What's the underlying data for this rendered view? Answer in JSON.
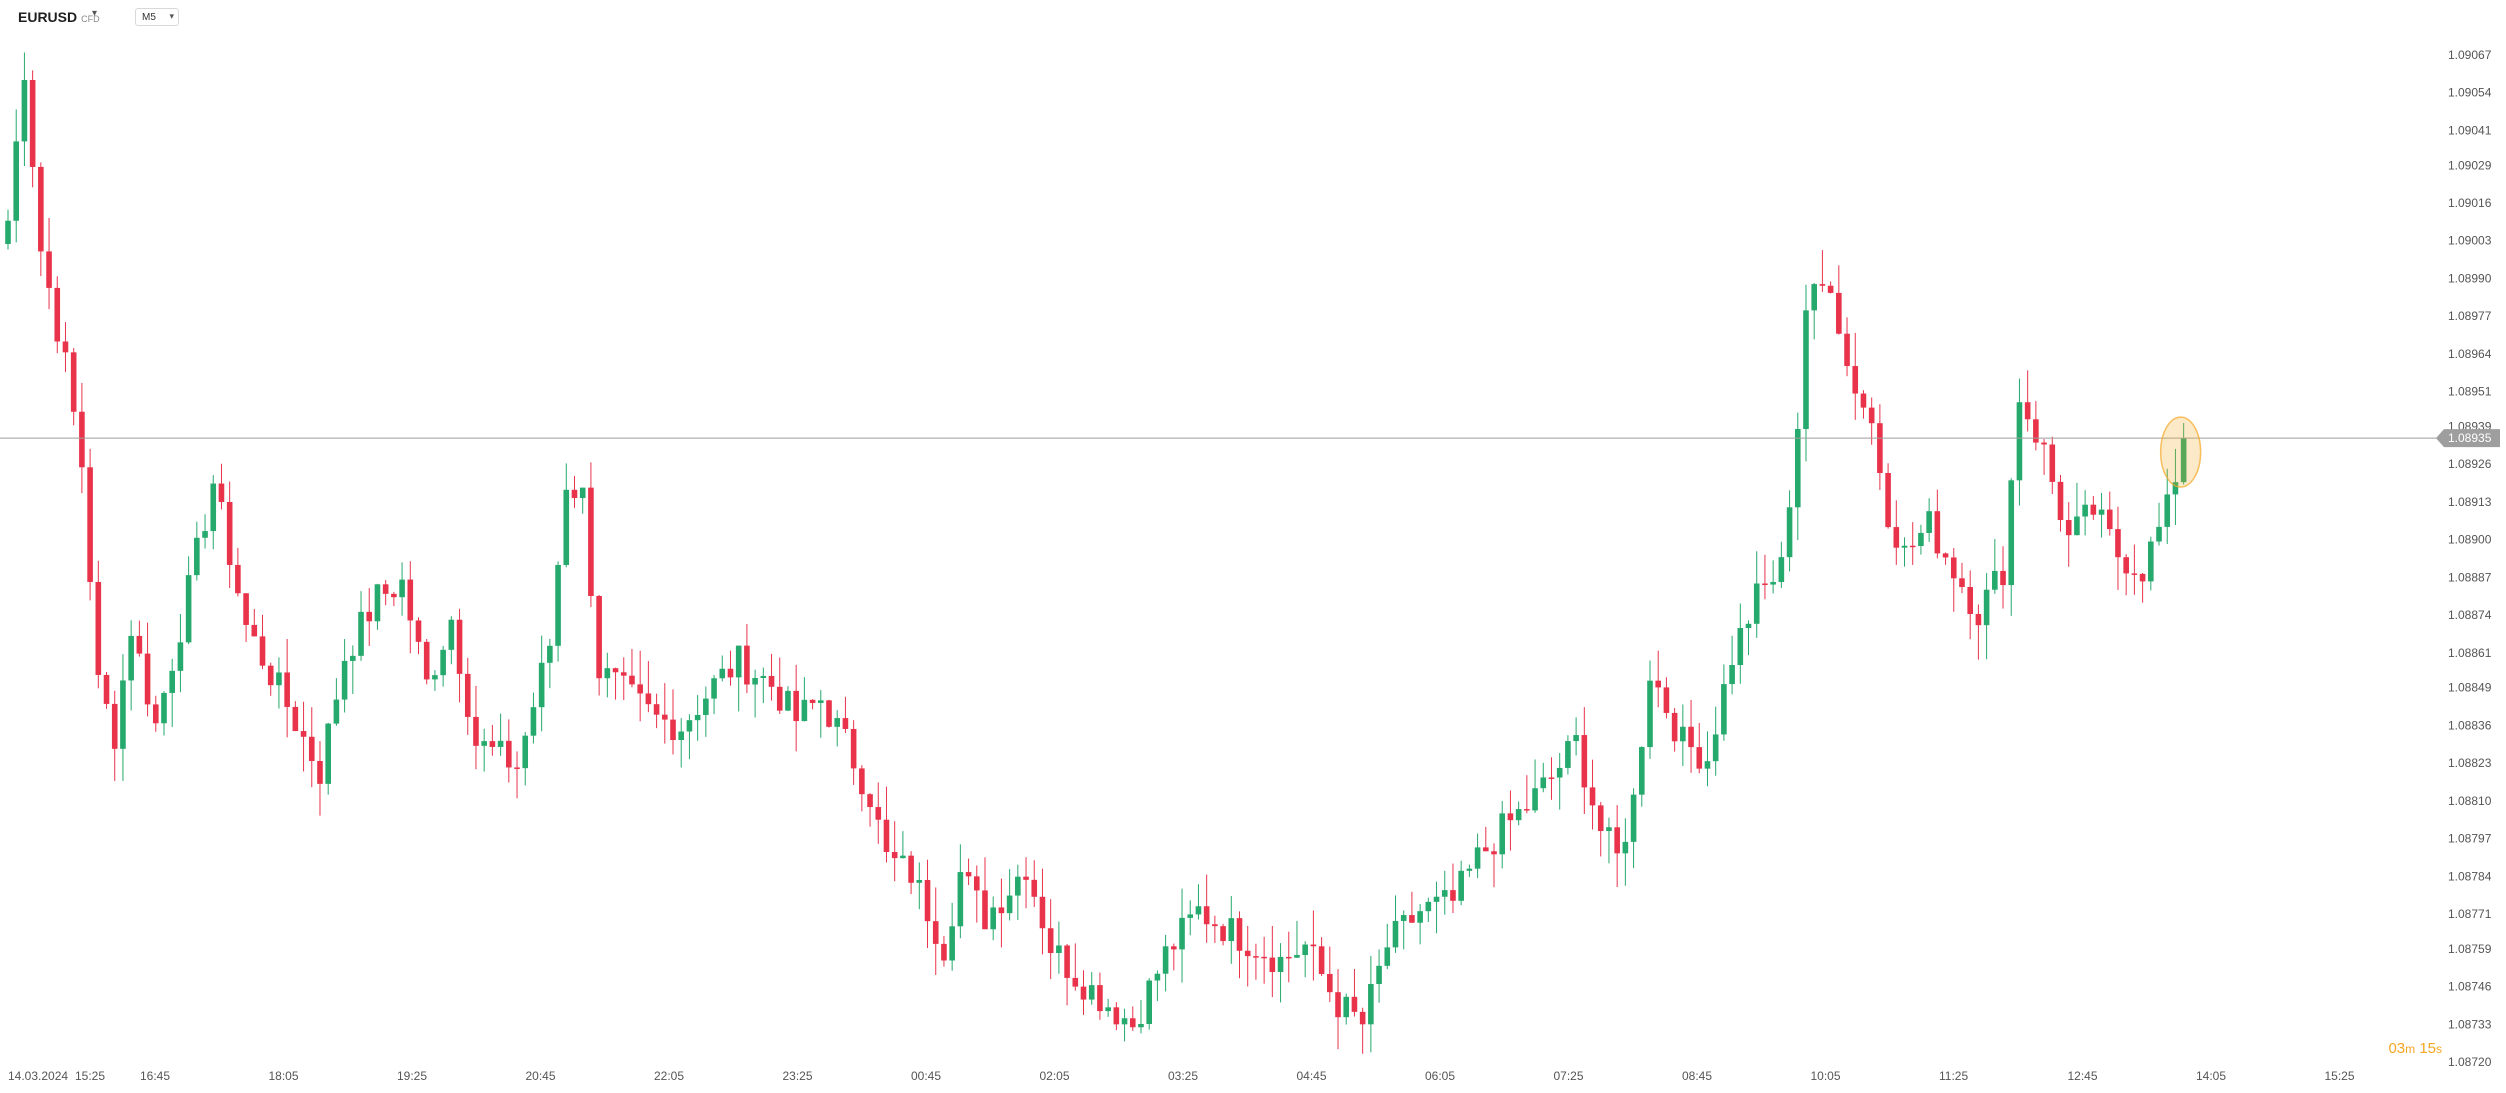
{
  "header": {
    "symbol": "EURUSD",
    "symbol_type": "CFD",
    "timeframe": "M5"
  },
  "countdown": {
    "minutes": "03",
    "minutes_unit": "m",
    "seconds": "15",
    "seconds_unit": "s"
  },
  "colors": {
    "up": "#26a96c",
    "down": "#e8334a",
    "price_line": "#9e9e9e",
    "price_tag_bg": "#9e9e9e",
    "marker": "#f5a623"
  },
  "chart_data": {
    "type": "candlestick",
    "title": "",
    "timeframe": "M5",
    "y_axis_ticks": [
      "1.09067",
      "1.09054",
      "1.09041",
      "1.09029",
      "1.09016",
      "1.09003",
      "1.08990",
      "1.08977",
      "1.08964",
      "1.08951",
      "1.08939",
      "1.08926",
      "1.08913",
      "1.08900",
      "1.08887",
      "1.08874",
      "1.08861",
      "1.08849",
      "1.08836",
      "1.08823",
      "1.08810",
      "1.08797",
      "1.08784",
      "1.08771",
      "1.08759",
      "1.08746",
      "1.08733",
      "1.08720"
    ],
    "ylim": [
      1.0872,
      1.09074
    ],
    "x_axis_ticks": [
      "14.03.2024",
      "15:25",
      "16:45",
      "18:05",
      "19:25",
      "20:45",
      "22:05",
      "23:25",
      "00:45",
      "02:05",
      "03:25",
      "04:45",
      "06:05",
      "07:25",
      "08:45",
      "10:05",
      "11:25",
      "12:45",
      "14:05",
      "15:25"
    ],
    "current_price": "1.08935",
    "current_price_value": 1.08935,
    "price_keyframes": [
      [
        0,
        1.0901
      ],
      [
        2,
        1.09063
      ],
      [
        4,
        1.09
      ],
      [
        7,
        1.0896
      ],
      [
        9,
        1.08926
      ],
      [
        11,
        1.0885
      ],
      [
        13,
        1.08833
      ],
      [
        15,
        1.0887
      ],
      [
        18,
        1.08836
      ],
      [
        21,
        1.0887
      ],
      [
        25,
        1.0892
      ],
      [
        29,
        1.0887
      ],
      [
        34,
        1.08843
      ],
      [
        38,
        1.0882
      ],
      [
        41,
        1.0886
      ],
      [
        45,
        1.0888
      ],
      [
        48,
        1.08885
      ],
      [
        51,
        1.0885
      ],
      [
        54,
        1.08873
      ],
      [
        57,
        1.0883
      ],
      [
        62,
        1.08822
      ],
      [
        66,
        1.08864
      ],
      [
        68,
        1.0892
      ],
      [
        70,
        1.08915
      ],
      [
        72,
        1.08855
      ],
      [
        76,
        1.08845
      ],
      [
        79,
        1.08838
      ],
      [
        82,
        1.08836
      ],
      [
        86,
        1.0885
      ],
      [
        89,
        1.08858
      ],
      [
        93,
        1.0885
      ],
      [
        96,
        1.08838
      ],
      [
        99,
        1.08845
      ],
      [
        102,
        1.0883
      ],
      [
        105,
        1.08812
      ],
      [
        107,
        1.0879
      ],
      [
        110,
        1.08785
      ],
      [
        114,
        1.0876
      ],
      [
        116,
        1.08785
      ],
      [
        119,
        1.0877
      ],
      [
        122,
        1.0878
      ],
      [
        124,
        1.08788
      ],
      [
        127,
        1.0876
      ],
      [
        130,
        1.0875
      ],
      [
        134,
        1.0874
      ],
      [
        137,
        1.08733
      ],
      [
        141,
        1.08757
      ],
      [
        145,
        1.08772
      ],
      [
        149,
        1.08765
      ],
      [
        152,
        1.0876
      ],
      [
        155,
        1.08755
      ],
      [
        158,
        1.0876
      ],
      [
        162,
        1.0874
      ],
      [
        165,
        1.08733
      ],
      [
        168,
        1.0876
      ],
      [
        172,
        1.08772
      ],
      [
        176,
        1.08775
      ],
      [
        179,
        1.0879
      ],
      [
        182,
        1.088
      ],
      [
        185,
        1.08808
      ],
      [
        188,
        1.08818
      ],
      [
        191,
        1.0883
      ],
      [
        194,
        1.088
      ],
      [
        196,
        1.0879
      ],
      [
        198,
        1.0881
      ],
      [
        200,
        1.08855
      ],
      [
        204,
        1.0883
      ],
      [
        207,
        1.08825
      ],
      [
        210,
        1.0886
      ],
      [
        213,
        1.0888
      ],
      [
        216,
        1.0889
      ],
      [
        218,
        1.0894
      ],
      [
        219,
        1.0898
      ],
      [
        222,
        1.0899
      ],
      [
        224,
        1.0896
      ],
      [
        227,
        1.0894
      ],
      [
        229,
        1.0891
      ],
      [
        231,
        1.08895
      ],
      [
        234,
        1.08905
      ],
      [
        237,
        1.0889
      ],
      [
        240,
        1.08875
      ],
      [
        243,
        1.0889
      ],
      [
        245,
        1.0895
      ],
      [
        248,
        1.0893
      ],
      [
        251,
        1.089
      ],
      [
        254,
        1.0891
      ],
      [
        257,
        1.08895
      ],
      [
        260,
        1.0889
      ],
      [
        263,
        1.0891
      ],
      [
        265,
        1.08935
      ]
    ]
  }
}
